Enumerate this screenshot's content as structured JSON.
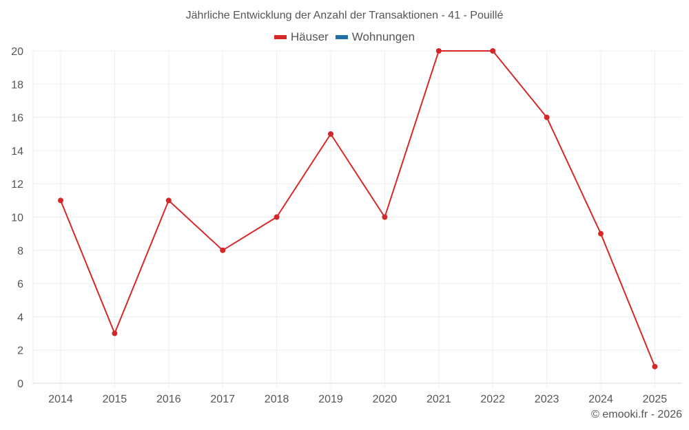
{
  "title": "Jährliche Entwicklung der Anzahl der Transaktionen - 41 - Pouillé",
  "legend": [
    {
      "label": "Häuser",
      "color": "#d62728"
    },
    {
      "label": "Wohnungen",
      "color": "#1f6fa8"
    }
  ],
  "credit": "© emooki.fr - 2026",
  "chart_data": {
    "type": "line",
    "title": "Jährliche Entwicklung der Anzahl der Transaktionen - 41 - Pouillé",
    "xlabel": "",
    "ylabel": "",
    "categories": [
      "2014",
      "2015",
      "2016",
      "2017",
      "2018",
      "2019",
      "2020",
      "2021",
      "2022",
      "2023",
      "2024",
      "2025"
    ],
    "series": [
      {
        "name": "Häuser",
        "color": "#d62728",
        "values": [
          11,
          3,
          11,
          8,
          10,
          15,
          10,
          20,
          20,
          16,
          9,
          1
        ]
      },
      {
        "name": "Wohnungen",
        "color": "#1f6fa8",
        "values": []
      }
    ],
    "ylim": [
      0,
      20
    ],
    "yticks": [
      0,
      2,
      4,
      6,
      8,
      10,
      12,
      14,
      16,
      18,
      20
    ],
    "grid": true,
    "legend_position": "top"
  }
}
